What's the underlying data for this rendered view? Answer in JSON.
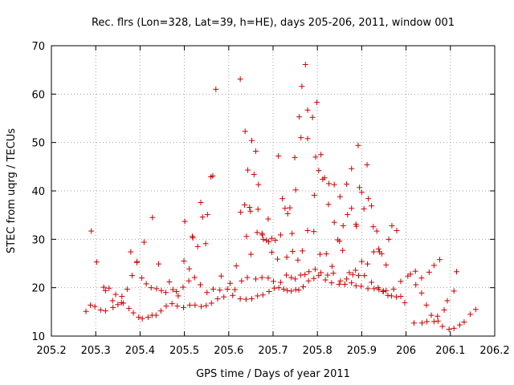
{
  "chart_data": {
    "type": "scatter",
    "title": "Rec. flrs (Lon=328, Lat=39, h=HE), days 205-206, 2011, window 001",
    "xlabel": "GPS time / Days of year 2011",
    "ylabel": "STEC from uqrg / TECUs",
    "xlim": [
      205.2,
      206.2
    ],
    "ylim": [
      10,
      70
    ],
    "xticks": [
      "205.2",
      "205.3",
      "205.4",
      "205.5",
      "205.6",
      "205.7",
      "205.8",
      "205.9",
      "206",
      "206.1",
      "206.2"
    ],
    "yticks": [
      "10",
      "20",
      "30",
      "40",
      "50",
      "60",
      "70"
    ],
    "grid": true,
    "marker": "plus",
    "color": "#cc0000",
    "series": [
      {
        "points": [
          [
            205.278,
            15.1
          ],
          [
            205.288,
            16.4
          ],
          [
            205.298,
            16.1
          ],
          [
            205.311,
            15.4
          ],
          [
            205.322,
            15.2
          ],
          [
            205.339,
            15.9
          ],
          [
            205.35,
            16.5
          ],
          [
            205.362,
            16.8
          ],
          [
            205.375,
            15.7
          ],
          [
            205.385,
            14.8
          ],
          [
            205.397,
            13.9
          ],
          [
            205.405,
            13.6
          ],
          [
            205.418,
            13.9
          ],
          [
            205.427,
            14.3
          ],
          [
            205.436,
            14.3
          ],
          [
            205.447,
            15.2
          ],
          [
            205.459,
            16.2
          ],
          [
            205.472,
            16.7
          ],
          [
            205.484,
            16.2
          ],
          [
            205.498,
            15.9
          ],
          [
            205.512,
            16.4
          ],
          [
            205.524,
            16.4
          ],
          [
            205.538,
            16.1
          ],
          [
            205.549,
            16.3
          ],
          [
            205.561,
            16.8
          ],
          [
            205.575,
            17.7
          ],
          [
            205.589,
            18.1
          ],
          [
            205.609,
            18.4
          ],
          [
            205.626,
            17.7
          ],
          [
            205.639,
            17.6
          ],
          [
            205.652,
            17.7
          ],
          [
            205.665,
            18.3
          ],
          [
            205.677,
            18.5
          ],
          [
            205.691,
            19.2
          ],
          [
            205.703,
            19.9
          ],
          [
            205.713,
            20.0
          ],
          [
            205.724,
            19.7
          ],
          [
            205.732,
            19.4
          ],
          [
            205.741,
            19.3
          ],
          [
            205.751,
            19.6
          ],
          [
            205.758,
            19.5
          ],
          [
            205.768,
            20.2
          ],
          [
            205.78,
            21.4
          ],
          [
            205.792,
            21.9
          ],
          [
            205.803,
            22.5
          ],
          [
            205.818,
            21.6
          ],
          [
            205.832,
            21.0
          ],
          [
            205.849,
            20.7
          ],
          [
            205.862,
            20.7
          ],
          [
            205.877,
            21.0
          ],
          [
            205.887,
            20.4
          ],
          [
            205.899,
            20.3
          ],
          [
            205.914,
            19.8
          ],
          [
            205.928,
            19.8
          ],
          [
            205.939,
            19.6
          ],
          [
            205.948,
            19.2
          ],
          [
            205.955,
            19.4
          ],
          [
            205.967,
            18.3
          ],
          [
            205.978,
            18.1
          ],
          [
            205.988,
            18.2
          ],
          [
            205.997,
            16.9
          ],
          [
            206.018,
            12.7
          ],
          [
            206.036,
            12.7
          ],
          [
            206.047,
            13.0
          ],
          [
            206.063,
            13.0
          ],
          [
            206.072,
            13.1
          ],
          [
            206.082,
            12.0
          ],
          [
            206.097,
            11.4
          ],
          [
            206.108,
            11.6
          ],
          [
            206.121,
            12.3
          ],
          [
            206.131,
            12.9
          ],
          [
            206.145,
            14.5
          ],
          [
            206.157,
            15.5
          ],
          [
            205.29,
            31.7
          ],
          [
            205.302,
            25.3
          ],
          [
            205.318,
            20.1
          ],
          [
            205.33,
            19.9
          ],
          [
            205.345,
            18.6
          ],
          [
            205.359,
            18.2
          ],
          [
            205.371,
            19.7
          ],
          [
            205.382,
            22.5
          ],
          [
            205.393,
            25.4
          ],
          [
            205.404,
            22.0
          ],
          [
            205.414,
            20.8
          ],
          [
            205.425,
            20.0
          ],
          [
            205.437,
            19.8
          ],
          [
            205.448,
            19.4
          ],
          [
            205.458,
            19.0
          ],
          [
            205.474,
            19.6
          ],
          [
            205.486,
            18.3
          ],
          [
            205.497,
            20.1
          ],
          [
            205.51,
            21.4
          ],
          [
            205.523,
            22.1
          ],
          [
            205.536,
            20.6
          ],
          [
            205.551,
            19.0
          ],
          [
            205.565,
            19.7
          ],
          [
            205.58,
            19.5
          ],
          [
            205.597,
            19.7
          ],
          [
            205.614,
            19.6
          ],
          [
            205.629,
            21.4
          ],
          [
            205.642,
            22.1
          ],
          [
            205.661,
            21.8
          ],
          [
            205.675,
            22.1
          ],
          [
            205.689,
            22.0
          ],
          [
            205.701,
            21.3
          ],
          [
            205.717,
            21.1
          ],
          [
            205.73,
            22.6
          ],
          [
            205.741,
            22.1
          ],
          [
            205.75,
            21.8
          ],
          [
            205.762,
            22.6
          ],
          [
            205.772,
            22.7
          ],
          [
            205.781,
            23.3
          ],
          [
            205.795,
            23.8
          ],
          [
            205.808,
            23.1
          ],
          [
            205.823,
            22.6
          ],
          [
            205.836,
            23.0
          ],
          [
            205.852,
            21.4
          ],
          [
            205.866,
            21.8
          ],
          [
            205.88,
            22.7
          ],
          [
            205.893,
            22.5
          ],
          [
            205.906,
            22.5
          ],
          [
            205.922,
            21.1
          ],
          [
            205.937,
            20.0
          ],
          [
            205.949,
            19.3
          ],
          [
            205.959,
            18.4
          ],
          [
            205.972,
            19.7
          ],
          [
            205.988,
            21.3
          ],
          [
            206.01,
            22.8
          ],
          [
            206.022,
            20.6
          ],
          [
            206.035,
            18.9
          ],
          [
            206.046,
            16.4
          ],
          [
            206.057,
            14.3
          ],
          [
            206.071,
            14.1
          ],
          [
            206.086,
            15.4
          ],
          [
            206.093,
            17.3
          ],
          [
            206.108,
            19.3
          ],
          [
            205.322,
            19.4
          ],
          [
            205.338,
            17.3
          ],
          [
            205.358,
            16.9
          ],
          [
            205.379,
            27.4
          ],
          [
            205.393,
            25.2
          ],
          [
            205.409,
            29.4
          ],
          [
            205.428,
            34.5
          ],
          [
            205.442,
            24.9
          ],
          [
            205.466,
            21.2
          ],
          [
            205.482,
            19.2
          ],
          [
            205.499,
            25.5
          ],
          [
            205.511,
            23.9
          ],
          [
            205.518,
            30.6
          ],
          [
            205.53,
            28.5
          ],
          [
            205.537,
            37.6
          ],
          [
            205.548,
            29.1
          ],
          [
            205.552,
            35.1
          ],
          [
            205.56,
            42.9
          ],
          [
            205.571,
            61.0
          ],
          [
            205.583,
            22.4
          ],
          [
            205.603,
            20.9
          ],
          [
            205.617,
            24.5
          ],
          [
            205.627,
            35.6
          ],
          [
            205.636,
            37.1
          ],
          [
            205.649,
            35.8
          ],
          [
            205.664,
            31.4
          ],
          [
            205.678,
            30.0
          ],
          [
            205.69,
            29.5
          ],
          [
            205.697,
            27.3
          ],
          [
            205.71,
            25.9
          ],
          [
            205.721,
            38.4
          ],
          [
            205.733,
            35.3
          ],
          [
            205.744,
            27.5
          ],
          [
            205.756,
            25.7
          ],
          [
            205.766,
            27.6
          ],
          [
            205.778,
            31.8
          ],
          [
            205.792,
            31.6
          ],
          [
            205.806,
            26.9
          ],
          [
            205.82,
            27.0
          ],
          [
            205.833,
            24.4
          ],
          [
            205.846,
            29.9
          ],
          [
            205.857,
            27.7
          ],
          [
            205.872,
            23.1
          ],
          [
            205.886,
            23.6
          ],
          [
            205.9,
            25.4
          ],
          [
            205.913,
            24.9
          ],
          [
            205.927,
            27.4
          ],
          [
            205.938,
            28.0
          ],
          [
            205.955,
            24.7
          ],
          [
            205.968,
            32.8
          ],
          [
            205.979,
            31.8
          ],
          [
            206.004,
            22.4
          ],
          [
            206.021,
            23.4
          ],
          [
            206.035,
            22.0
          ],
          [
            206.052,
            23.2
          ],
          [
            206.063,
            24.6
          ],
          [
            206.076,
            25.8
          ],
          [
            206.114,
            23.3
          ],
          [
            205.501,
            33.7
          ],
          [
            205.519,
            30.3
          ],
          [
            205.541,
            34.6
          ],
          [
            205.564,
            43.1
          ],
          [
            205.626,
            63.1
          ],
          [
            205.637,
            52.3
          ],
          [
            205.643,
            44.3
          ],
          [
            205.647,
            36.6
          ],
          [
            205.652,
            50.4
          ],
          [
            205.657,
            43.4
          ],
          [
            205.661,
            48.2
          ],
          [
            205.667,
            41.3
          ],
          [
            205.676,
            30.9
          ],
          [
            205.685,
            29.8
          ],
          [
            205.697,
            30.2
          ],
          [
            205.712,
            47.2
          ],
          [
            205.727,
            36.4
          ],
          [
            205.738,
            36.5
          ],
          [
            205.751,
            40.2
          ],
          [
            205.759,
            55.3
          ],
          [
            205.765,
            61.6
          ],
          [
            205.773,
            66.1
          ],
          [
            205.778,
            56.7
          ],
          [
            205.789,
            55.2
          ],
          [
            205.796,
            47.0
          ],
          [
            205.799,
            58.3
          ],
          [
            205.808,
            47.5
          ],
          [
            205.812,
            42.4
          ],
          [
            205.826,
            41.5
          ],
          [
            205.838,
            41.3
          ],
          [
            205.851,
            38.8
          ],
          [
            205.866,
            41.4
          ],
          [
            205.877,
            44.6
          ],
          [
            205.888,
            32.7
          ],
          [
            205.892,
            49.4
          ],
          [
            205.9,
            39.7
          ],
          [
            205.912,
            45.4
          ],
          [
            205.922,
            36.9
          ],
          [
            205.934,
            31.7
          ],
          [
            205.945,
            27.0
          ],
          [
            205.961,
            30.0
          ],
          [
            205.64,
            30.6
          ],
          [
            205.65,
            26.9
          ],
          [
            205.666,
            36.2
          ],
          [
            205.675,
            31.2
          ],
          [
            205.689,
            34.2
          ],
          [
            205.705,
            29.8
          ],
          [
            205.717,
            30.9
          ],
          [
            205.731,
            26.3
          ],
          [
            205.743,
            31.2
          ],
          [
            205.749,
            46.9
          ],
          [
            205.763,
            51.0
          ],
          [
            205.778,
            50.8
          ],
          [
            205.793,
            39.1
          ],
          [
            205.803,
            44.2
          ],
          [
            205.816,
            42.7
          ],
          [
            205.825,
            37.2
          ],
          [
            205.838,
            33.5
          ],
          [
            205.85,
            29.6
          ],
          [
            205.858,
            32.8
          ],
          [
            205.868,
            35.1
          ],
          [
            205.877,
            36.4
          ],
          [
            205.887,
            33.1
          ],
          [
            205.895,
            40.7
          ],
          [
            205.905,
            36.3
          ],
          [
            205.915,
            38.4
          ],
          [
            205.926,
            32.6
          ],
          [
            205.94,
            27.4
          ]
        ]
      }
    ]
  }
}
